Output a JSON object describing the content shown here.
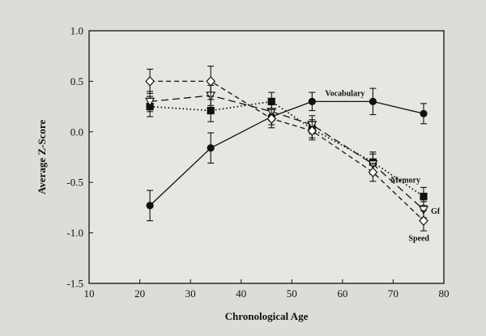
{
  "chart_data": {
    "type": "line",
    "title": "",
    "xlabel": "Chronological Age",
    "ylabel": "Average Z-Score",
    "xlim": [
      10,
      80
    ],
    "ylim": [
      -1.5,
      1.0
    ],
    "xticks": [
      "10",
      "20",
      "30",
      "40",
      "50",
      "60",
      "70",
      "80"
    ],
    "yticks": [
      "1.0",
      "0.5",
      "0.0",
      "-0.5",
      "-1.0",
      "-1.5"
    ],
    "grid": false,
    "legend": "direct labels at line ends",
    "series": [
      {
        "name": "Vocabulary",
        "marker": "filled-circle",
        "line": "solid",
        "x": [
          22,
          34,
          46,
          54,
          66,
          76
        ],
        "y": [
          -0.73,
          -0.16,
          0.15,
          0.3,
          0.3,
          0.18
        ],
        "err": [
          0.15,
          0.15,
          0.08,
          0.09,
          0.13,
          0.1
        ]
      },
      {
        "name": "Memory",
        "marker": "filled-square",
        "line": "dotted",
        "x": [
          22,
          34,
          46,
          54,
          66,
          76
        ],
        "y": [
          0.25,
          0.21,
          0.3,
          0.03,
          -0.3,
          -0.64
        ],
        "err": [
          0.1,
          0.11,
          0.09,
          0.09,
          0.1,
          0.09
        ]
      },
      {
        "name": "Gf",
        "marker": "open-triangle-down",
        "line": "long-dash",
        "x": [
          22,
          34,
          46,
          54,
          66,
          76
        ],
        "y": [
          0.3,
          0.36,
          0.2,
          0.07,
          -0.32,
          -0.77
        ],
        "err": [
          0.1,
          0.1,
          0.09,
          0.09,
          0.1,
          0.08
        ]
      },
      {
        "name": "Speed",
        "marker": "open-diamond",
        "line": "dash",
        "x": [
          22,
          34,
          46,
          54,
          66,
          76
        ],
        "y": [
          0.5,
          0.5,
          0.13,
          0.01,
          -0.4,
          -0.88
        ],
        "err": [
          0.12,
          0.15,
          0.09,
          0.09,
          0.09,
          0.1
        ]
      }
    ]
  }
}
